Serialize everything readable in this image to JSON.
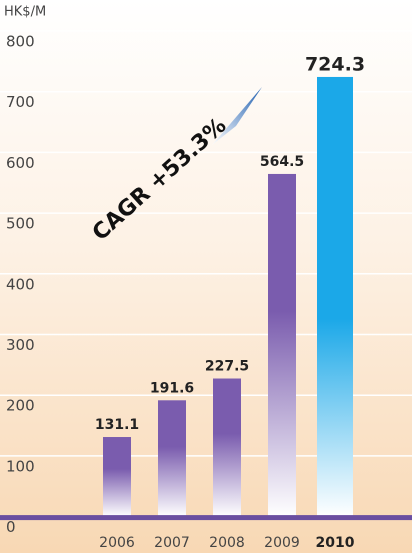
{
  "chart_data": {
    "type": "bar",
    "y_axis_label": "HK$/M",
    "annotation": "CAGR +53.3%",
    "categories": [
      "2006",
      "2007",
      "2008",
      "2009",
      "2010"
    ],
    "values": [
      131.1,
      191.6,
      227.5,
      564.5,
      724.3
    ],
    "colors": [
      "#7a5cae",
      "#7a5cae",
      "#7a5cae",
      "#7a5cae",
      "#1ba8e8"
    ],
    "ylim": [
      0,
      800
    ],
    "yticks": [
      0,
      100,
      200,
      300,
      400,
      500,
      600,
      700,
      800
    ],
    "grid": true
  }
}
